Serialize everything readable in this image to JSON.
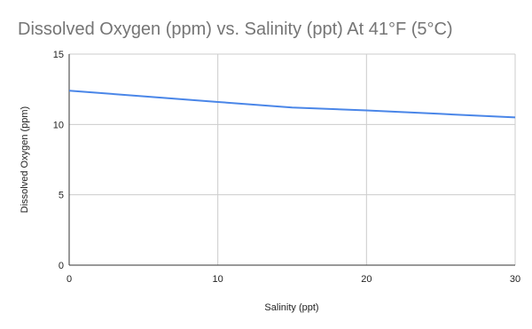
{
  "chart_data": {
    "type": "line",
    "title": "Dissolved Oxygen (ppm) vs. Salinity (ppt) At 41°F (5°C)",
    "x_label": "Salinity (ppt)",
    "y_label": "Dissolved Oxygen (ppm)",
    "x": [
      0,
      5,
      10,
      15,
      20,
      25,
      30
    ],
    "series": [
      {
        "name": "Dissolved Oxygen (ppm)",
        "color": "#4a86e8",
        "values": [
          12.4,
          12.0,
          11.6,
          11.2,
          11.0,
          10.75,
          10.5
        ]
      }
    ],
    "xlim": [
      0,
      30
    ],
    "xticks": [
      0,
      10,
      20,
      30
    ],
    "ylim": [
      0,
      15
    ],
    "yticks": [
      0,
      5,
      10,
      15
    ],
    "grid": true
  }
}
